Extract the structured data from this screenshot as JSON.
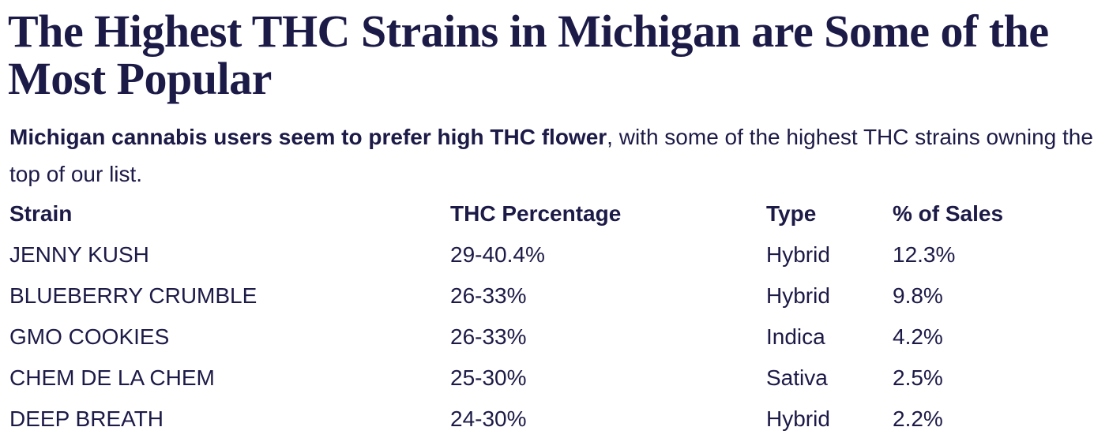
{
  "header": {
    "title": "The Highest THC Strains in Michigan are Some of the Most Popular",
    "intro_bold": "Michigan cannabis users seem to prefer high THC flower",
    "intro_rest": ", with some of the highest THC strains owning the top of our list."
  },
  "table": {
    "columns": [
      "Strain",
      "THC Percentage",
      "Type",
      "% of Sales"
    ],
    "rows": [
      [
        "JENNY KUSH",
        "29-40.4%",
        "Hybrid",
        "12.3%"
      ],
      [
        "BLUEBERRY CRUMBLE",
        "26-33%",
        "Hybrid",
        "9.8%"
      ],
      [
        "GMO COOKIES",
        "26-33%",
        "Indica",
        "4.2%"
      ],
      [
        "CHEM DE LA CHEM",
        "25-30%",
        "Sativa",
        "2.5%"
      ],
      [
        "DEEP BREATH",
        "24-30%",
        "Hybrid",
        "2.2%"
      ]
    ]
  }
}
